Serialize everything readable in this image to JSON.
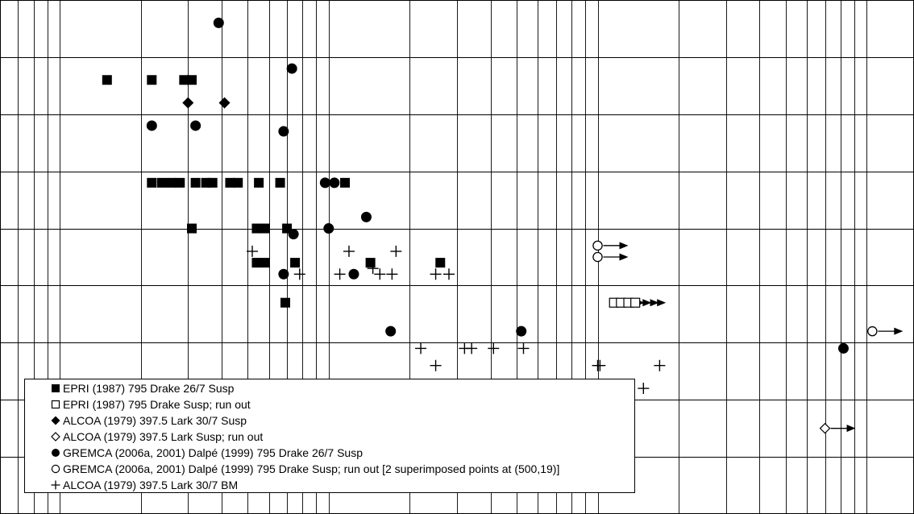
{
  "chart_data": {
    "type": "scatter",
    "title": "",
    "xlabel": "",
    "ylabel": "",
    "xscale": "log",
    "xlim": [
      0.6,
      1500
    ],
    "ylim": [
      10,
      19
    ],
    "grid": true,
    "legend_position": "bottom-left",
    "series": [
      {
        "name": "EPRI (1987) 795 Drake 26/7 Susp",
        "marker": "square-filled",
        "runout": false,
        "points": [
          [
            1.5,
            17.6
          ],
          [
            2.2,
            17.6
          ],
          [
            2.9,
            17.6
          ],
          [
            3.1,
            17.6
          ],
          [
            2.2,
            15.8
          ],
          [
            2.4,
            15.8
          ],
          [
            2.6,
            15.8
          ],
          [
            2.8,
            15.8
          ],
          [
            3.2,
            15.8
          ],
          [
            3.5,
            15.8
          ],
          [
            3.7,
            15.8
          ],
          [
            4.3,
            15.8
          ],
          [
            4.6,
            15.8
          ],
          [
            5.5,
            15.8
          ],
          [
            6.6,
            15.8
          ],
          [
            11.5,
            15.8
          ],
          [
            3.1,
            15.0
          ],
          [
            5.4,
            15.0
          ],
          [
            5.8,
            15.0
          ],
          [
            7.0,
            15.0
          ],
          [
            5.4,
            14.4
          ],
          [
            5.8,
            14.4
          ],
          [
            7.5,
            14.4
          ],
          [
            14.3,
            14.4
          ],
          [
            26,
            14.4
          ],
          [
            6.9,
            13.7
          ]
        ]
      },
      {
        "name": "EPRI (1987) 795 Drake Susp; run out",
        "marker": "square-open",
        "runout": true,
        "points": [
          [
            115,
            13.7
          ],
          [
            122,
            13.7
          ],
          [
            130,
            13.7
          ],
          [
            138,
            13.7
          ]
        ]
      },
      {
        "name": "ALCOA (1979) 397.5 Lark 30/7 Susp",
        "marker": "diamond-filled",
        "runout": false,
        "points": [
          [
            3.0,
            17.2
          ],
          [
            4.1,
            17.2
          ]
        ]
      },
      {
        "name": "ALCOA (1979) 397.5 Lark Susp; run out",
        "marker": "diamond-open",
        "runout": true,
        "points": [
          [
            700,
            11.5
          ]
        ]
      },
      {
        "name": "GREMCA (2006a, 2001) Dalpé (1999) 795 Drake 26/7 Susp",
        "marker": "circle-filled",
        "runout": false,
        "points": [
          [
            3.9,
            18.6
          ],
          [
            7.3,
            17.8
          ],
          [
            2.2,
            16.8
          ],
          [
            3.2,
            16.8
          ],
          [
            6.8,
            16.7
          ],
          [
            9.7,
            15.8
          ],
          [
            10.5,
            15.8
          ],
          [
            13.8,
            15.2
          ],
          [
            10.0,
            15.0
          ],
          [
            7.4,
            14.9
          ],
          [
            6.8,
            14.2
          ],
          [
            12.4,
            14.2
          ],
          [
            17,
            13.2
          ],
          [
            52,
            13.2
          ],
          [
            820,
            12.9
          ]
        ]
      },
      {
        "name": "GREMCA (2006a, 2001) Dalpé (1999) 795 Drake Susp; run out [2 superimposed points at (500,19)]",
        "marker": "circle-open",
        "runout": true,
        "points": [
          [
            100,
            14.7
          ],
          [
            100,
            14.5
          ],
          [
            1050,
            13.2
          ]
        ]
      },
      {
        "name": "ALCOA (1979) 397.5 Lark 30/7 BM",
        "marker": "plus",
        "runout": false,
        "points": [
          [
            5.2,
            14.6
          ],
          [
            7.8,
            14.2
          ],
          [
            11,
            14.2
          ],
          [
            11.9,
            14.6
          ],
          [
            14.6,
            14.3
          ],
          [
            15.5,
            14.2
          ],
          [
            17.2,
            14.2
          ],
          [
            17.8,
            14.6
          ],
          [
            25,
            14.2
          ],
          [
            28,
            14.2
          ],
          [
            22,
            12.9
          ],
          [
            25,
            12.6
          ],
          [
            24,
            12.2
          ],
          [
            28,
            12.2
          ],
          [
            32,
            12.9
          ],
          [
            34,
            12.9
          ],
          [
            41,
            12.9
          ],
          [
            40,
            12.2
          ],
          [
            42,
            12.2
          ],
          [
            47,
            12.2
          ],
          [
            49,
            12.2
          ],
          [
            53,
            12.9
          ],
          [
            60,
            12.2
          ],
          [
            100,
            12.6
          ],
          [
            102,
            12.6
          ],
          [
            113,
            12.2
          ],
          [
            148,
            12.2
          ],
          [
            170,
            12.6
          ]
        ]
      }
    ]
  }
}
